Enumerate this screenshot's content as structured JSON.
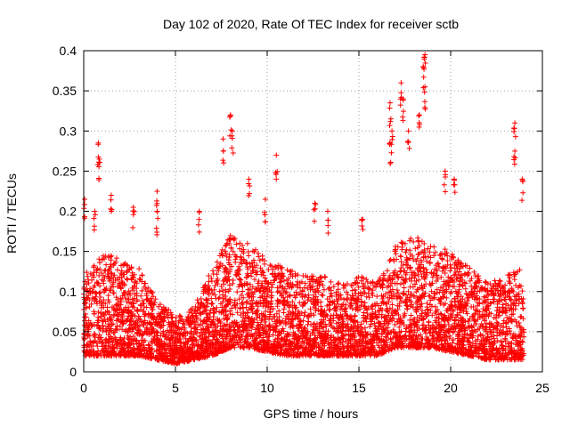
{
  "chart_data": {
    "type": "scatter",
    "title": "Day 102 of 2020, Rate Of TEC Index for receiver sctb",
    "xlabel": "GPS time / hours",
    "ylabel": "ROTI / TECUs",
    "xlim": [
      0,
      25
    ],
    "ylim": [
      0,
      0.4
    ],
    "xticks": [
      0,
      5,
      10,
      15,
      20,
      25
    ],
    "xtick_labels": [
      "0",
      "5",
      "10",
      "15",
      "20",
      "25"
    ],
    "yticks": [
      0,
      0.05,
      0.1,
      0.15,
      0.2,
      0.25,
      0.3,
      0.35,
      0.4
    ],
    "ytick_labels": [
      "0",
      "0.05",
      "0.1",
      "0.15",
      "0.2",
      "0.25",
      "0.3",
      "0.35",
      "0.4"
    ],
    "grid": true,
    "marker": "+",
    "color": "#ff0000",
    "x_range_of_data": [
      0,
      24
    ],
    "series": [
      {
        "envelope_x": [
          0,
          1,
          2,
          3,
          4,
          5,
          6,
          7,
          8,
          9,
          10,
          11,
          12,
          13,
          14,
          15,
          16,
          17,
          18,
          19,
          20,
          21,
          22,
          23,
          24
        ],
        "typical_upper": [
          0.12,
          0.15,
          0.14,
          0.13,
          0.09,
          0.07,
          0.08,
          0.13,
          0.17,
          0.16,
          0.14,
          0.13,
          0.12,
          0.12,
          0.11,
          0.12,
          0.11,
          0.16,
          0.17,
          0.16,
          0.15,
          0.13,
          0.11,
          0.12,
          0.13
        ],
        "typical_lower": [
          0.02,
          0.02,
          0.02,
          0.02,
          0.015,
          0.01,
          0.015,
          0.02,
          0.03,
          0.03,
          0.025,
          0.02,
          0.02,
          0.02,
          0.02,
          0.02,
          0.02,
          0.03,
          0.03,
          0.03,
          0.025,
          0.02,
          0.015,
          0.015,
          0.015
        ],
        "peaks": [
          {
            "x": 0.05,
            "y": 0.215
          },
          {
            "x": 0.8,
            "y": 0.285
          },
          {
            "x": 0.85,
            "y": 0.265
          },
          {
            "x": 0.6,
            "y": 0.2
          },
          {
            "x": 1.5,
            "y": 0.22
          },
          {
            "x": 2.7,
            "y": 0.205
          },
          {
            "x": 4.0,
            "y": 0.225
          },
          {
            "x": 4.0,
            "y": 0.2
          },
          {
            "x": 6.3,
            "y": 0.2
          },
          {
            "x": 7.6,
            "y": 0.29
          },
          {
            "x": 8.0,
            "y": 0.32
          },
          {
            "x": 8.1,
            "y": 0.3
          },
          {
            "x": 9.0,
            "y": 0.24
          },
          {
            "x": 9.9,
            "y": 0.215
          },
          {
            "x": 10.5,
            "y": 0.27
          },
          {
            "x": 12.6,
            "y": 0.21
          },
          {
            "x": 13.3,
            "y": 0.2
          },
          {
            "x": 15.2,
            "y": 0.19
          },
          {
            "x": 16.7,
            "y": 0.335
          },
          {
            "x": 16.8,
            "y": 0.3
          },
          {
            "x": 16.7,
            "y": 0.285
          },
          {
            "x": 17.3,
            "y": 0.36
          },
          {
            "x": 17.4,
            "y": 0.34
          },
          {
            "x": 17.7,
            "y": 0.3
          },
          {
            "x": 18.6,
            "y": 0.395
          },
          {
            "x": 18.5,
            "y": 0.38
          },
          {
            "x": 18.6,
            "y": 0.355
          },
          {
            "x": 18.3,
            "y": 0.32
          },
          {
            "x": 19.7,
            "y": 0.25
          },
          {
            "x": 20.2,
            "y": 0.24
          },
          {
            "x": 23.5,
            "y": 0.31
          },
          {
            "x": 23.5,
            "y": 0.275
          },
          {
            "x": 23.9,
            "y": 0.24
          }
        ]
      }
    ]
  }
}
